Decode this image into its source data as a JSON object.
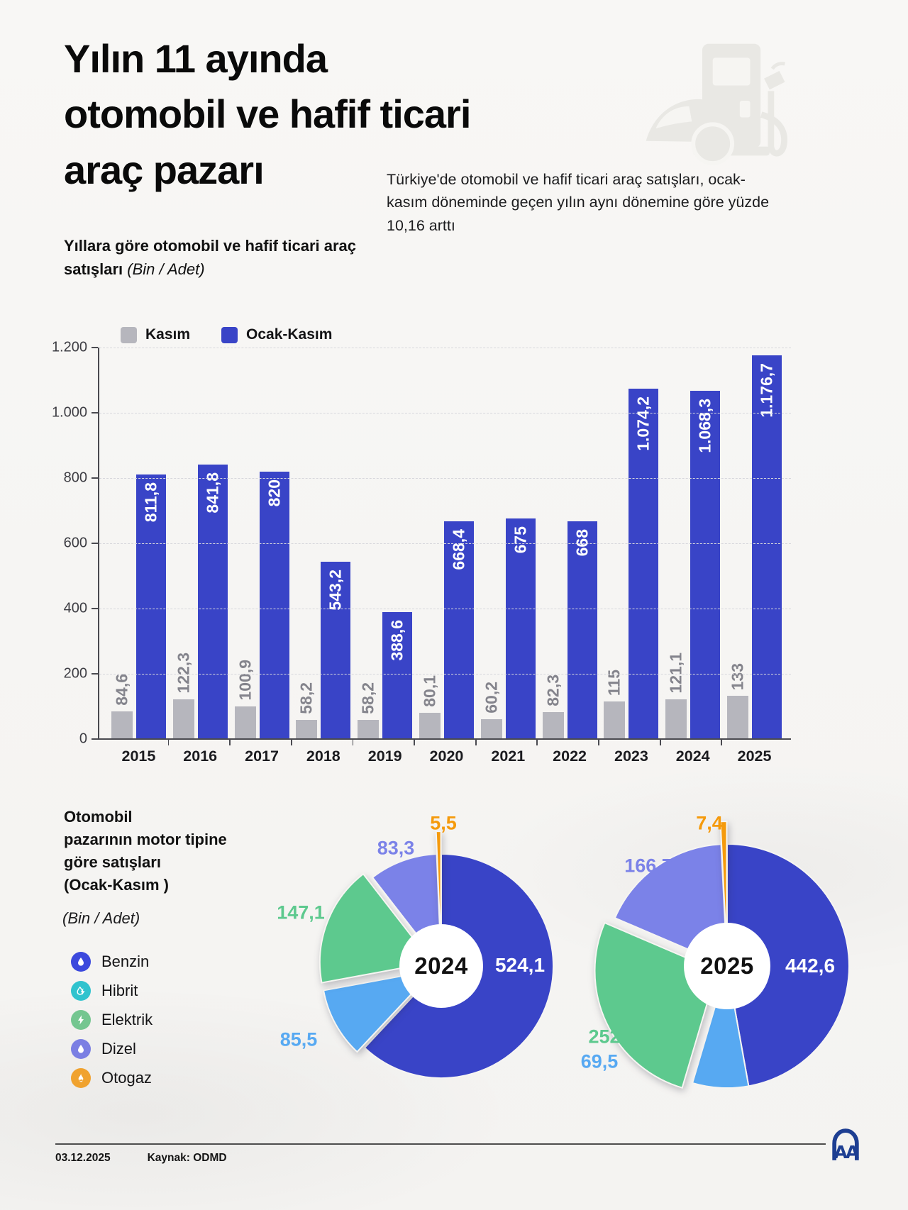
{
  "header": {
    "title_lines": [
      "Yılın 11 ayında",
      "otomobil ve hafif ticari",
      "araç pazarı"
    ],
    "subtitle": "Türkiye'de otomobil ve hafif ticari araç satışları, ocak-kasım döneminde geçen yılın aynı dönemine göre yüzde 10,16 arttı"
  },
  "bar_section": {
    "title": "Yıllara göre otomobil ve hafif ticari araç satışları",
    "unit": "(Bin / Adet)",
    "legend": [
      {
        "label": "Kasım",
        "color": "#b6b6bd"
      },
      {
        "label": "Ocak-Kasım",
        "color": "#3944c7"
      }
    ]
  },
  "pie_section": {
    "title_lines": [
      "Otomobil",
      "pazarının motor tipine",
      "göre satışları",
      "(Ocak-Kasım )"
    ],
    "unit": "(Bin / Adet)",
    "legend": [
      {
        "label": "Benzin",
        "color": "#3c49dd",
        "icon": "drop-icon"
      },
      {
        "label": "Hibrit",
        "color": "#30c3ce",
        "icon": "hybrid-drop-bolt-icon"
      },
      {
        "label": "Elektrik",
        "color": "#74c690",
        "icon": "bolt-icon"
      },
      {
        "label": "Dizel",
        "color": "#7b7fe3",
        "icon": "drop-icon"
      },
      {
        "label": "Otogaz",
        "color": "#f0a22e",
        "icon": "flame-icon"
      }
    ]
  },
  "chart_data": [
    {
      "type": "bar",
      "title": "Yıllara göre otomobil ve hafif ticari araç satışları",
      "unit": "Bin / Adet",
      "categories": [
        "2015",
        "2016",
        "2017",
        "2018",
        "2019",
        "2020",
        "2021",
        "2022",
        "2023",
        "2024",
        "2025"
      ],
      "series": [
        {
          "name": "Kasım",
          "color": "#b6b6bd",
          "values": [
            84.6,
            122.3,
            100.9,
            58.2,
            58.2,
            80.1,
            60.2,
            82.3,
            115,
            121.1,
            133
          ],
          "labels": [
            "84,6",
            "122,3",
            "100,9",
            "58,2",
            "58,2",
            "80,1",
            "60,2",
            "82,3",
            "115",
            "121,1",
            "133"
          ]
        },
        {
          "name": "Ocak-Kasım",
          "color": "#3944c7",
          "values": [
            811.8,
            841.8,
            820,
            543.2,
            388.6,
            668.4,
            675,
            668,
            1074.2,
            1068.3,
            1176.7
          ],
          "labels": [
            "811,8",
            "841,8",
            "820",
            "543,2",
            "388,6",
            "668,4",
            "675",
            "668",
            "1.074,2",
            "1.068,3",
            "1.176,7"
          ]
        }
      ],
      "ylim": [
        0,
        1200
      ],
      "yticks": [
        {
          "value": 0,
          "label": "0"
        },
        {
          "value": 200,
          "label": "200"
        },
        {
          "value": 400,
          "label": "400"
        },
        {
          "value": 600,
          "label": "600"
        },
        {
          "value": 800,
          "label": "800"
        },
        {
          "value": 1000,
          "label": "1.000"
        },
        {
          "value": 1200,
          "label": "1.200"
        }
      ],
      "grid": "horizontal-dashed",
      "legend_position": "top-left"
    },
    {
      "type": "pie",
      "title": "2024",
      "unit": "Bin / Adet",
      "total": 845.5,
      "order": "clockwise-from-top",
      "slices": [
        {
          "name": "Benzin",
          "value": 524.1,
          "label": "524,1",
          "color": "#3944c7"
        },
        {
          "name": "Dizel",
          "value": 85.5,
          "label": "85,5",
          "color": "#57a9f2"
        },
        {
          "name": "Hibrit",
          "value": 147.1,
          "label": "147,1",
          "color": "#5dc98e"
        },
        {
          "name": "Elektrik",
          "value": 83.3,
          "label": "83,3",
          "color": "#7b82e8"
        },
        {
          "name": "Otogaz",
          "value": 5.5,
          "label": "5,5",
          "color": "#f59a0c"
        }
      ]
    },
    {
      "type": "pie",
      "title": "2025",
      "unit": "Bin / Adet",
      "total": 938.2,
      "order": "clockwise-from-top",
      "slices": [
        {
          "name": "Benzin",
          "value": 442.6,
          "label": "442,6",
          "color": "#3944c7"
        },
        {
          "name": "Dizel",
          "value": 69.5,
          "label": "69,5",
          "color": "#57a9f2"
        },
        {
          "name": "Hibrit",
          "value": 252,
          "label": "252",
          "color": "#5dc98e"
        },
        {
          "name": "Elektrik",
          "value": 166.7,
          "label": "166,7",
          "color": "#7b82e8"
        },
        {
          "name": "Otogaz",
          "value": 7.4,
          "label": "7,4",
          "color": "#f59a0c"
        }
      ]
    }
  ],
  "footer": {
    "date": "03.12.2025",
    "source": "Kaynak: ODMD",
    "logo": "AA"
  }
}
